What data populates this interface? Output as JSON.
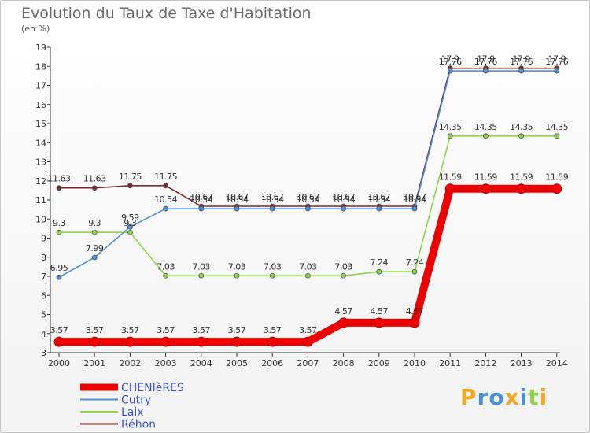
{
  "title": "Evolution du Taux de Taxe d'Habitation",
  "unit": "(en %)",
  "logo": "Proxiti",
  "colors": {
    "CHENIèRES": "#ee0000",
    "Cutry": "#4a90d9",
    "Laix": "#8ed64a",
    "Réhon": "#7a2b2b"
  },
  "chart_data": {
    "type": "line",
    "title": "Evolution du Taux de Taxe d'Habitation",
    "ylabel": "(en %)",
    "xlabel": "",
    "x": [
      "2000",
      "2001",
      "2002",
      "2003",
      "2004",
      "2005",
      "2006",
      "2007",
      "2008",
      "2009",
      "2010",
      "2011",
      "2012",
      "2013",
      "2014"
    ],
    "ylim": [
      3,
      19
    ],
    "yticks": [
      3,
      4,
      5,
      6,
      7,
      8,
      9,
      10,
      11,
      12,
      13,
      14,
      15,
      16,
      17,
      18,
      19
    ],
    "grid": false,
    "legend_position": "bottom-left",
    "series": [
      {
        "name": "CHENIèRES",
        "color": "#ee0000",
        "values": [
          3.57,
          3.57,
          3.57,
          3.57,
          3.57,
          3.57,
          3.57,
          3.57,
          4.57,
          4.57,
          4.57,
          11.59,
          11.59,
          11.59,
          11.59
        ],
        "labels": [
          "3.57",
          "3.57",
          "3.57",
          "3.57",
          "3.57",
          "3.57",
          "3.57",
          "3.57",
          "4.57",
          "4.57",
          "4.57",
          "11.59",
          "11.59",
          "11.59",
          "11.59"
        ]
      },
      {
        "name": "Cutry",
        "color": "#4a90d9",
        "values": [
          6.95,
          7.99,
          9.59,
          10.54,
          10.54,
          10.54,
          10.54,
          10.54,
          10.54,
          10.54,
          10.54,
          17.76,
          17.76,
          17.76,
          17.76
        ],
        "labels": [
          "6.95",
          "7.99",
          "9.59",
          "10.54",
          "10.54",
          "10.54",
          "10.54",
          "10.54",
          "10.54",
          "10.54",
          "10.54",
          "17.76",
          "17.76",
          "17.76",
          "17.76"
        ]
      },
      {
        "name": "Laix",
        "color": "#8ed64a",
        "values": [
          9.3,
          9.3,
          9.3,
          7.03,
          7.03,
          7.03,
          7.03,
          7.03,
          7.03,
          7.24,
          7.24,
          14.35,
          14.35,
          14.35,
          14.35
        ],
        "labels": [
          "9.3",
          "9.3",
          "9.3",
          "7.03",
          "7.03",
          "7.03",
          "7.03",
          "7.03",
          "7.03",
          "7.24",
          "7.24",
          "14.35",
          "14.35",
          "14.35",
          "14.35"
        ]
      },
      {
        "name": "Réhon",
        "color": "#7a2b2b",
        "values": [
          11.63,
          11.63,
          11.75,
          11.75,
          10.67,
          10.67,
          10.67,
          10.67,
          10.67,
          10.67,
          10.67,
          17.9,
          17.9,
          17.9,
          17.9
        ],
        "labels": [
          "11.63",
          "11.63",
          "11.75",
          "11.75",
          "10.67",
          "10.67",
          "10.67",
          "10.67",
          "10.67",
          "10.67",
          "10.67",
          "17.9",
          "17.9",
          "17.9",
          "17.9"
        ]
      }
    ]
  }
}
